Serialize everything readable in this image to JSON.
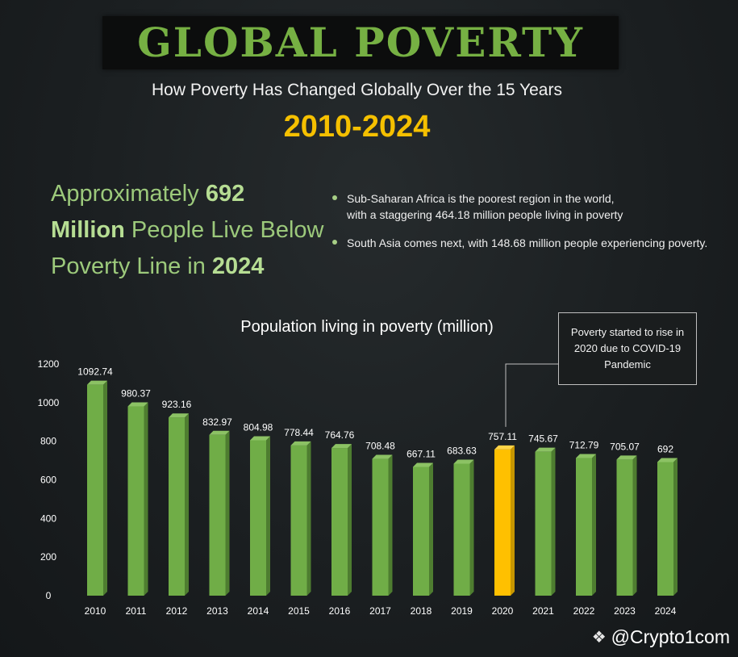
{
  "header": {
    "title": "GLOBAL POVERTY",
    "subtitle": "How Poverty Has Changed Globally Over the 15 Years",
    "years": "2010-2024"
  },
  "headline": {
    "part1": "Approximately ",
    "number": "692",
    "part2": "Million",
    "part3": " People Live Below Poverty Line in ",
    "year": "2024"
  },
  "bullets": [
    "Sub-Saharan Africa is the poorest region in the world, with a staggering 464.18 million people living in poverty",
    "South Asia comes next, with 148.68 million people experiencing poverty."
  ],
  "callout": "Poverty started to rise in 2020 due to COVID-19 Pandemic",
  "watermark": "@Crypto1com",
  "colors": {
    "bar": "#70ad47",
    "highlight": "#ffc000",
    "title": "#76b043",
    "years": "#f5c000"
  },
  "chart_data": {
    "type": "bar",
    "title": "Population living in poverty (million)",
    "categories": [
      "2010",
      "2011",
      "2012",
      "2013",
      "2014",
      "2015",
      "2016",
      "2017",
      "2018",
      "2019",
      "2020",
      "2021",
      "2022",
      "2023",
      "2024"
    ],
    "values": [
      1092.74,
      980.37,
      923.16,
      832.97,
      804.98,
      778.44,
      764.76,
      708.48,
      667.11,
      683.63,
      757.11,
      745.67,
      712.79,
      705.07,
      692
    ],
    "value_labels": [
      "1092.74",
      "980.37",
      "923.16",
      "832.97",
      "804.98",
      "778.44",
      "764.76",
      "708.48",
      "667.11",
      "683.63",
      "757.11",
      "745.67",
      "712.79",
      "705.07",
      "692"
    ],
    "highlight_category": "2020",
    "ylim": [
      0,
      1200
    ],
    "yticks": [
      0,
      200,
      400,
      600,
      800,
      1000,
      1200
    ],
    "grid": false,
    "legend": "none"
  }
}
